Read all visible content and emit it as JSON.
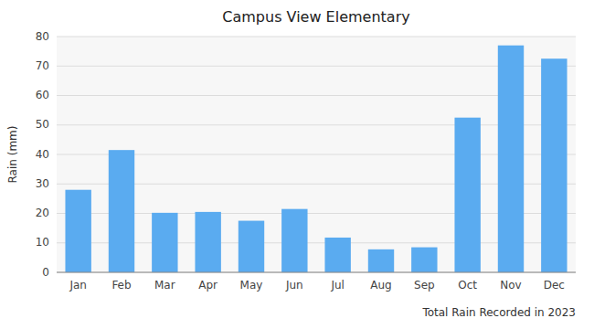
{
  "chart_data": {
    "type": "bar",
    "title": "Campus View Elementary",
    "xlabel": "Total Rain Recorded in 2023",
    "ylabel": "Rain (mm)",
    "categories": [
      "Jan",
      "Feb",
      "Mar",
      "Apr",
      "May",
      "Jun",
      "Jul",
      "Aug",
      "Sep",
      "Oct",
      "Nov",
      "Dec"
    ],
    "values": [
      28,
      41.5,
      20.2,
      20.5,
      17.5,
      21.5,
      11.8,
      7.8,
      8.5,
      52.5,
      77,
      72.5
    ],
    "color": "#5aabf0",
    "ylim": [
      0,
      80
    ],
    "yticks": [
      0,
      10,
      20,
      30,
      40,
      50,
      60,
      70,
      80
    ],
    "grid": true
  }
}
